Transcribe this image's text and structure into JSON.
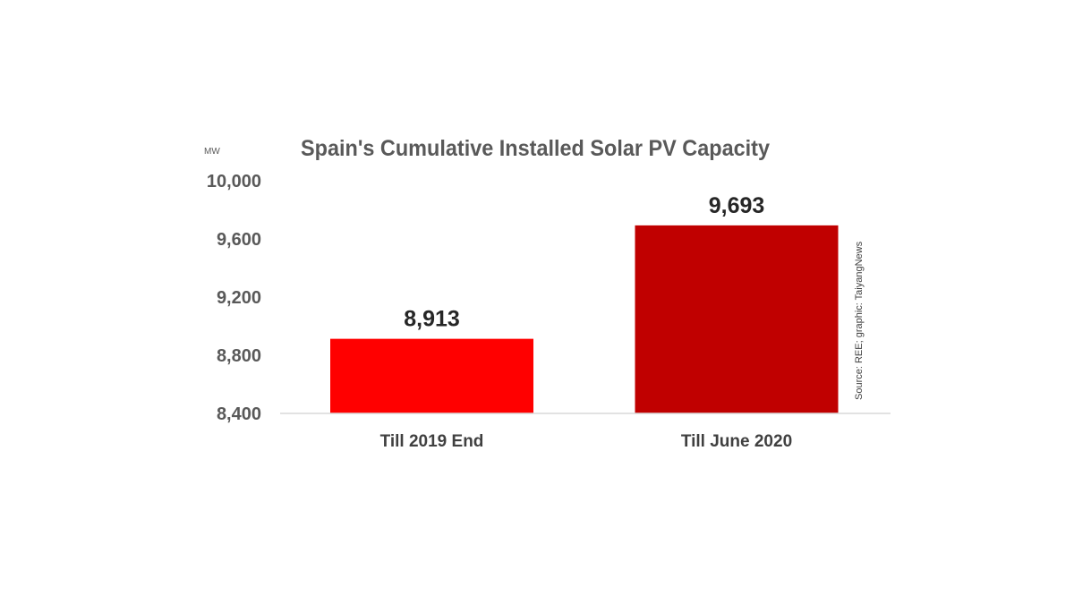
{
  "chart_data": {
    "type": "bar",
    "title": "Spain's Cumulative Installed Solar PV Capacity",
    "ylabel": "MW",
    "xlabel": "",
    "categories": [
      "Till 2019 End",
      "Till June 2020"
    ],
    "values": [
      8913,
      9693
    ],
    "data_labels": [
      "8,913",
      "9,693"
    ],
    "bar_colors": [
      "#ff0000",
      "#c00000"
    ],
    "ylim": [
      8400,
      10000
    ],
    "yticks": [
      8400,
      8800,
      9200,
      9600,
      10000
    ],
    "ytick_labels": [
      "8,400",
      "8,800",
      "9,200",
      "9,600",
      "10,000"
    ],
    "grid": false,
    "legend": "none",
    "source_note": "Source: REE; graphic: TaiyangNews"
  }
}
